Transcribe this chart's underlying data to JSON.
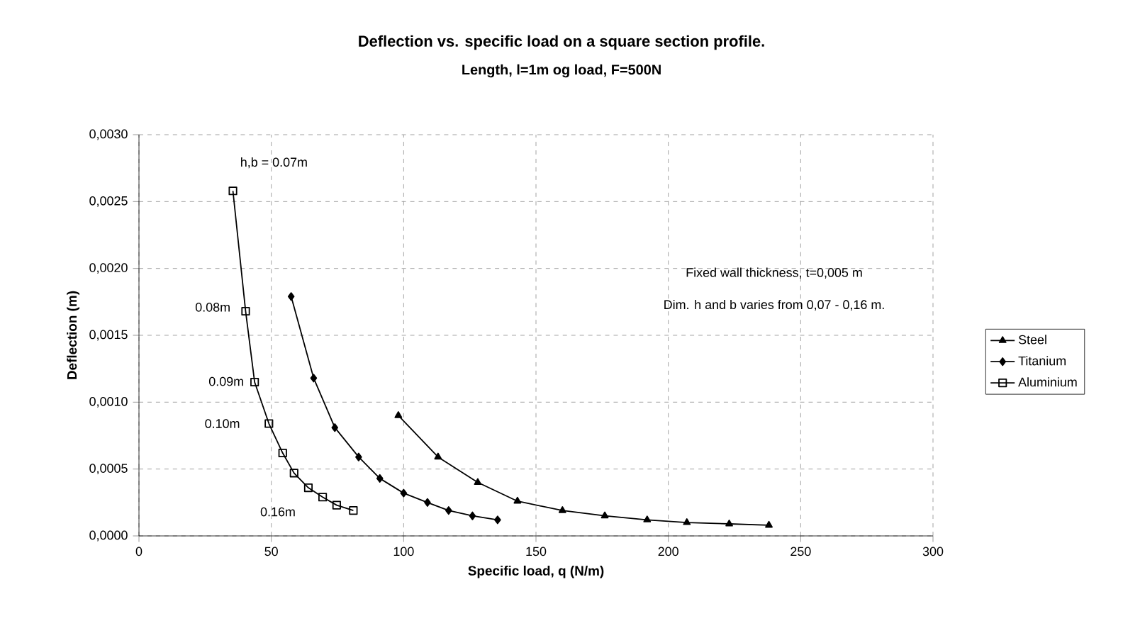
{
  "chart_data": {
    "type": "line",
    "title": "Deflection vs. specific load on a square section profile.",
    "subtitle": "Length, l=1m og load, F=500N",
    "xlabel": "Specific load, q (N/m)",
    "ylabel": "Deflection (m)",
    "xlim": [
      0,
      300
    ],
    "xticks": [
      0,
      50,
      100,
      150,
      200,
      250,
      300
    ],
    "ylim": [
      0,
      0.003
    ],
    "yticks": [
      {
        "value": 0,
        "label": "0,0000"
      },
      {
        "value": 0.0005,
        "label": "0,0005"
      },
      {
        "value": 0.001,
        "label": "0,0010"
      },
      {
        "value": 0.0015,
        "label": "0,0015"
      },
      {
        "value": 0.002,
        "label": "0,0020"
      },
      {
        "value": 0.0025,
        "label": "0,0025"
      },
      {
        "value": 0.003,
        "label": "0,0030"
      }
    ],
    "grid": true,
    "legend": "right",
    "line_style": "solid",
    "series": [
      {
        "name": "Steel",
        "color": "#000000",
        "marker": "triangle",
        "x": [
          98,
          113,
          128,
          143,
          160,
          176,
          192,
          207,
          223,
          238
        ],
        "values": [
          0.0009,
          0.00059,
          0.0004,
          0.00026,
          0.00019,
          0.00015,
          0.00012,
          0.0001,
          9e-05,
          8e-05
        ]
      },
      {
        "name": "Titanium",
        "color": "#000000",
        "marker": "diamond",
        "x": [
          57.5,
          66,
          74,
          83,
          91,
          100,
          109,
          117,
          126,
          135.5
        ],
        "values": [
          0.00179,
          0.00118,
          0.00081,
          0.00059,
          0.00043,
          0.00032,
          0.00025,
          0.00019,
          0.00015,
          0.00012
        ]
      },
      {
        "name": "Aluminium",
        "color": "#000000",
        "marker": "square",
        "x": [
          35.5,
          40.3,
          43.7,
          49.1,
          54.3,
          58.6,
          64,
          69.4,
          74.7,
          81
        ],
        "values": [
          0.00258,
          0.00168,
          0.00115,
          0.00084,
          0.00062,
          0.00047,
          0.00036,
          0.00029,
          0.00023,
          0.00019
        ]
      }
    ],
    "annotations": [
      "h,b = 0.07m",
      "0.08m",
      "0.09m",
      "0.10m",
      "0.16m",
      "Fixed wall thickness, t=0,005 m",
      "Dim. h and b varies from 0,07 - 0,16 m."
    ]
  }
}
